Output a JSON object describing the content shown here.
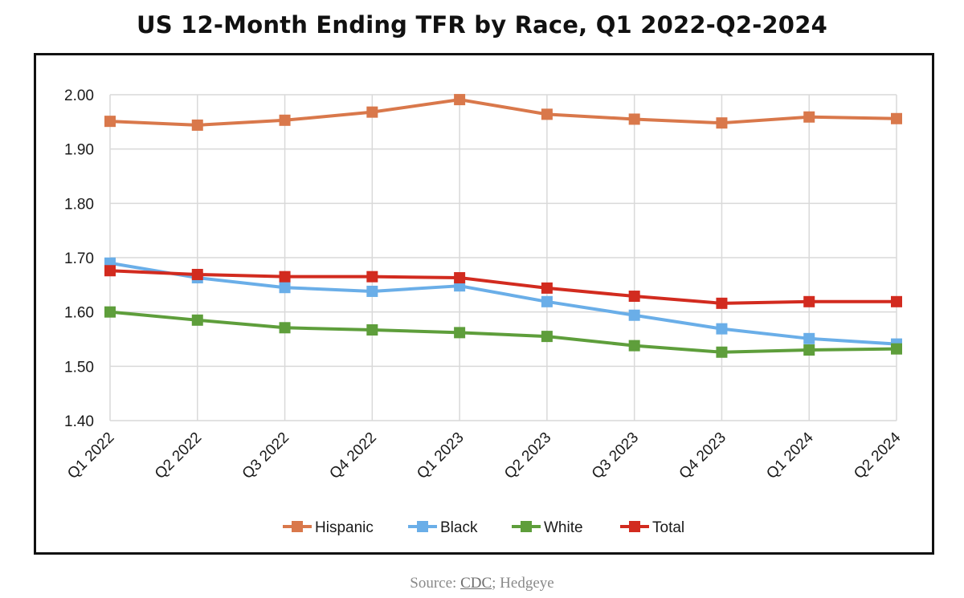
{
  "chart_data": {
    "type": "line",
    "title": "US 12-Month Ending TFR by Race, Q1 2022-Q2-2024",
    "xlabel": "",
    "ylabel": "",
    "ylim": [
      1.4,
      2.0
    ],
    "yticks": [
      {
        "value": 1.4,
        "label": "1.40"
      },
      {
        "value": 1.5,
        "label": "1.50"
      },
      {
        "value": 1.6,
        "label": "1.60"
      },
      {
        "value": 1.7,
        "label": "1.70"
      },
      {
        "value": 1.8,
        "label": "1.80"
      },
      {
        "value": 1.9,
        "label": "1.90"
      },
      {
        "value": 2.0,
        "label": "2.00"
      }
    ],
    "grid": true,
    "legend_position": "bottom",
    "categories": [
      "Q1 2022",
      "Q2 2022",
      "Q3 2022",
      "Q4 2022",
      "Q1 2023",
      "Q2 2023",
      "Q3 2023",
      "Q4 2023",
      "Q1 2024",
      "Q2 2024"
    ],
    "series": [
      {
        "name": "Hispanic",
        "color": "#d9784b",
        "values": [
          1.951,
          1.944,
          1.953,
          1.968,
          1.991,
          1.964,
          1.955,
          1.948,
          1.959,
          1.956
        ]
      },
      {
        "name": "Black",
        "color": "#6aaee8",
        "values": [
          1.69,
          1.663,
          1.645,
          1.638,
          1.648,
          1.619,
          1.594,
          1.569,
          1.551,
          1.541
        ]
      },
      {
        "name": "White",
        "color": "#5e9e3b",
        "values": [
          1.6,
          1.585,
          1.571,
          1.567,
          1.562,
          1.555,
          1.538,
          1.526,
          1.53,
          1.532
        ]
      },
      {
        "name": "Total",
        "color": "#d22b1f",
        "values": [
          1.676,
          1.669,
          1.665,
          1.665,
          1.663,
          1.644,
          1.629,
          1.616,
          1.619,
          1.619
        ]
      }
    ]
  },
  "footer": {
    "source_prefix": "Source:",
    "source_link": "CDC",
    "source_suffix": "; Hedgeye"
  },
  "colors": {
    "grid": "#d9d9d9",
    "axis_text": "#1a1a1a",
    "frame": "#111111"
  }
}
